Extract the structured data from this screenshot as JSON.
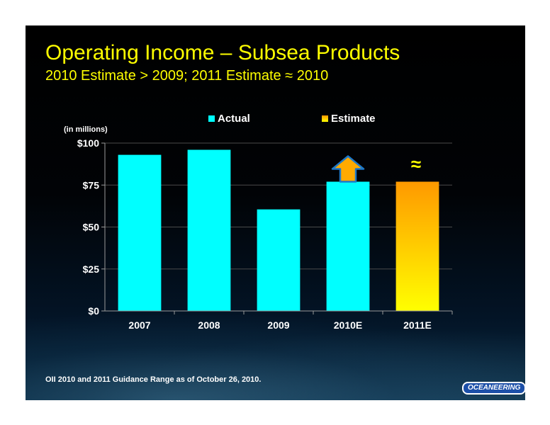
{
  "slide": {
    "title": "Operating Income – Subsea Products",
    "subtitle": "2010 Estimate > 2009; 2011 Estimate ≈ 2010",
    "footnote": "OII 2010 and 2011 Guidance Range as of October 26, 2010.",
    "logo_text": "OCEANEERING",
    "approx_symbol": "≈"
  },
  "colors": {
    "title": "#ffff00",
    "actual": "#00ffff",
    "estimate_top": "#ff9900",
    "estimate_bottom": "#ffff00",
    "arrow": "#ffaa00",
    "arrow_outline": "#1e78c8"
  },
  "chart_data": {
    "type": "bar",
    "ylabel": "(in millions)",
    "categories": [
      "2007",
      "2008",
      "2009",
      "2010E",
      "2011E"
    ],
    "series": [
      {
        "name": "Actual",
        "values": [
          93,
          96,
          60.5,
          77,
          null
        ]
      },
      {
        "name": "Estimate",
        "values": [
          null,
          null,
          null,
          null,
          77
        ]
      }
    ],
    "ylim": [
      0,
      100
    ],
    "yticks": [
      0,
      25,
      50,
      75,
      100
    ],
    "ytick_labels": [
      "$0",
      "$25",
      "$50",
      "$75",
      "$100"
    ],
    "grid": true,
    "legend_position": "top",
    "annotations": [
      {
        "category": "2010E",
        "type": "up-arrow"
      },
      {
        "category": "2011E",
        "type": "text",
        "text": "≈"
      }
    ]
  }
}
